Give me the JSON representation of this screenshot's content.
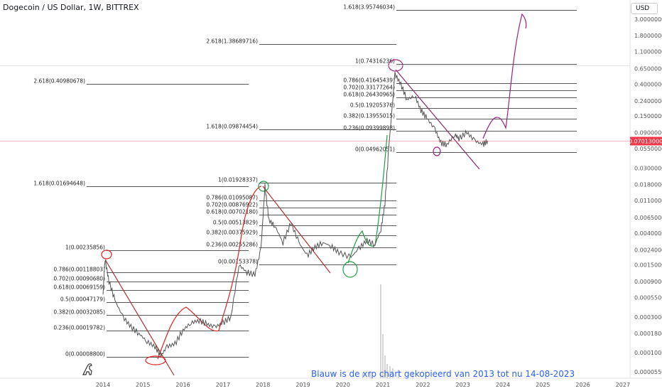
{
  "title": "Dogecoin / US Dollar, 1W, BITTREX",
  "currency_button": "USD",
  "bottom_note": "Blauw is de xrp chart gekopieerd van 2013 tot nu 14-08-2023",
  "logo_icon": "dinosaur-logo-icon",
  "chart_data": {
    "type": "line",
    "title": "Dogecoin / US Dollar, 1W, BITTREX",
    "xlabel": "",
    "ylabel": "",
    "y_scale": "log",
    "grid": false,
    "x_ticks": [
      "2014",
      "2015",
      "2016",
      "2017",
      "2018",
      "2019",
      "2020",
      "2021",
      "2022",
      "2023",
      "2024",
      "2025",
      "2026",
      "2027"
    ],
    "y_ticks": [
      "3.00000000",
      "1.80000000",
      "1.10000000",
      "0.65000000",
      "0.40000000",
      "0.24000000",
      "0.15000000",
      "0.09000000",
      "0.05500000",
      "0.03000000",
      "0.01800000",
      "0.01100000",
      "0.00650000",
      "0.00400000",
      "0.00240000",
      "0.00150000",
      "0.00090000",
      "0.00055000",
      "0.00030000",
      "0.00018000",
      "0.00010000",
      "0.00005500"
    ],
    "current_price": "0.07013000",
    "series": [
      {
        "values": [
          {
            "x": 2014.0,
            "y": 0.0006
          },
          {
            "x": 2014.05,
            "y": 0.0018
          },
          {
            "x": 2014.15,
            "y": 0.0009
          },
          {
            "x": 2014.3,
            "y": 0.0005
          },
          {
            "x": 2014.5,
            "y": 0.0003
          },
          {
            "x": 2014.7,
            "y": 0.00022
          },
          {
            "x": 2014.9,
            "y": 0.00018
          },
          {
            "x": 2015.1,
            "y": 0.00014
          },
          {
            "x": 2015.3,
            "y": 0.00012
          },
          {
            "x": 2015.45,
            "y": 9e-05
          },
          {
            "x": 2015.6,
            "y": 0.00012
          },
          {
            "x": 2015.8,
            "y": 0.00013
          },
          {
            "x": 2016.0,
            "y": 0.0002
          },
          {
            "x": 2016.2,
            "y": 0.00025
          },
          {
            "x": 2016.4,
            "y": 0.00027
          },
          {
            "x": 2016.6,
            "y": 0.00024
          },
          {
            "x": 2016.8,
            "y": 0.00022
          },
          {
            "x": 2017.0,
            "y": 0.00025
          },
          {
            "x": 2017.2,
            "y": 0.0003
          },
          {
            "x": 2017.4,
            "y": 0.0015
          },
          {
            "x": 2017.6,
            "y": 0.0012
          },
          {
            "x": 2017.8,
            "y": 0.0011
          },
          {
            "x": 2017.95,
            "y": 0.0025
          },
          {
            "x": 2018.05,
            "y": 0.017
          },
          {
            "x": 2018.15,
            "y": 0.006
          },
          {
            "x": 2018.3,
            "y": 0.005
          },
          {
            "x": 2018.5,
            "y": 0.003
          },
          {
            "x": 2018.7,
            "y": 0.0055
          },
          {
            "x": 2018.9,
            "y": 0.003
          },
          {
            "x": 2019.1,
            "y": 0.002
          },
          {
            "x": 2019.3,
            "y": 0.0026
          },
          {
            "x": 2019.5,
            "y": 0.003
          },
          {
            "x": 2019.7,
            "y": 0.0027
          },
          {
            "x": 2019.9,
            "y": 0.0022
          },
          {
            "x": 2020.2,
            "y": 0.0019
          },
          {
            "x": 2020.4,
            "y": 0.0025
          },
          {
            "x": 2020.6,
            "y": 0.0032
          },
          {
            "x": 2020.8,
            "y": 0.0028
          },
          {
            "x": 2020.95,
            "y": 0.0045
          },
          {
            "x": 2021.05,
            "y": 0.01
          },
          {
            "x": 2021.15,
            "y": 0.06
          },
          {
            "x": 2021.3,
            "y": 0.55
          },
          {
            "x": 2021.45,
            "y": 0.4
          },
          {
            "x": 2021.6,
            "y": 0.25
          },
          {
            "x": 2021.8,
            "y": 0.28
          },
          {
            "x": 2021.95,
            "y": 0.18
          },
          {
            "x": 2022.1,
            "y": 0.14
          },
          {
            "x": 2022.3,
            "y": 0.1
          },
          {
            "x": 2022.45,
            "y": 0.065
          },
          {
            "x": 2022.6,
            "y": 0.062
          },
          {
            "x": 2022.8,
            "y": 0.085
          },
          {
            "x": 2022.9,
            "y": 0.075
          },
          {
            "x": 2023.1,
            "y": 0.09
          },
          {
            "x": 2023.3,
            "y": 0.07
          },
          {
            "x": 2023.5,
            "y": 0.062
          },
          {
            "x": 2023.62,
            "y": 0.07
          }
        ]
      }
    ],
    "fib_levels": [
      {
        "label": "1.618(3.95746034)",
        "y": 3.95746034
      },
      {
        "label": "2.618(1.38689716)",
        "y": 1.38689716
      },
      {
        "label": "1(0.74316236)",
        "y": 0.74316236
      },
      {
        "label": "0.786(0.41645439)",
        "y": 0.41645439
      },
      {
        "label": "0.702(0.33177264)",
        "y": 0.33177264
      },
      {
        "label": "0.618(0.26430965)",
        "y": 0.26430965
      },
      {
        "label": "0.5(0.19205376)",
        "y": 0.19205376
      },
      {
        "label": "0.382(0.13955015)",
        "y": 0.13955015
      },
      {
        "label": "0.236(0.09399898)",
        "y": 0.09399898
      },
      {
        "label": "1.618(0.09874454)",
        "y": 0.09874454
      },
      {
        "label": "0(0.04962051)",
        "y": 0.04962051
      },
      {
        "label": "2.618(0.40980678)",
        "y": 0.40980678
      },
      {
        "label": "1(0.01928337)",
        "y": 0.01928337
      },
      {
        "label": "1.618(0.01694648)",
        "y": 0.01694648
      },
      {
        "label": "0.786(0.01095087)",
        "y": 0.01095087
      },
      {
        "label": "0.702(0.00876922)",
        "y": 0.00876922
      },
      {
        "label": "0.618(0.00702180)",
        "y": 0.0070218
      },
      {
        "label": "0.5(0.00513829)",
        "y": 0.00513829
      },
      {
        "label": "0.382(0.00375929)",
        "y": 0.00375929
      },
      {
        "label": "0.236(0.00255286)",
        "y": 0.00255286
      },
      {
        "label": "0(0.00153378)",
        "y": 0.00153378
      },
      {
        "label": "1(0.00235856)",
        "y": 0.00235856
      },
      {
        "label": "0.786(0.00118803)",
        "y": 0.00118803
      },
      {
        "label": "0.702(0.00090680)",
        "y": 0.0009068
      },
      {
        "label": "0.618(0.00069159)",
        "y": 0.00069159
      },
      {
        "label": "0.5(0.00047179)",
        "y": 0.00047179
      },
      {
        "label": "0.382(0.00032085)",
        "y": 0.00032085
      },
      {
        "label": "0.236(0.00019782)",
        "y": 0.00019782
      },
      {
        "label": "0(0.00008800)",
        "y": 8.8e-05
      }
    ]
  }
}
